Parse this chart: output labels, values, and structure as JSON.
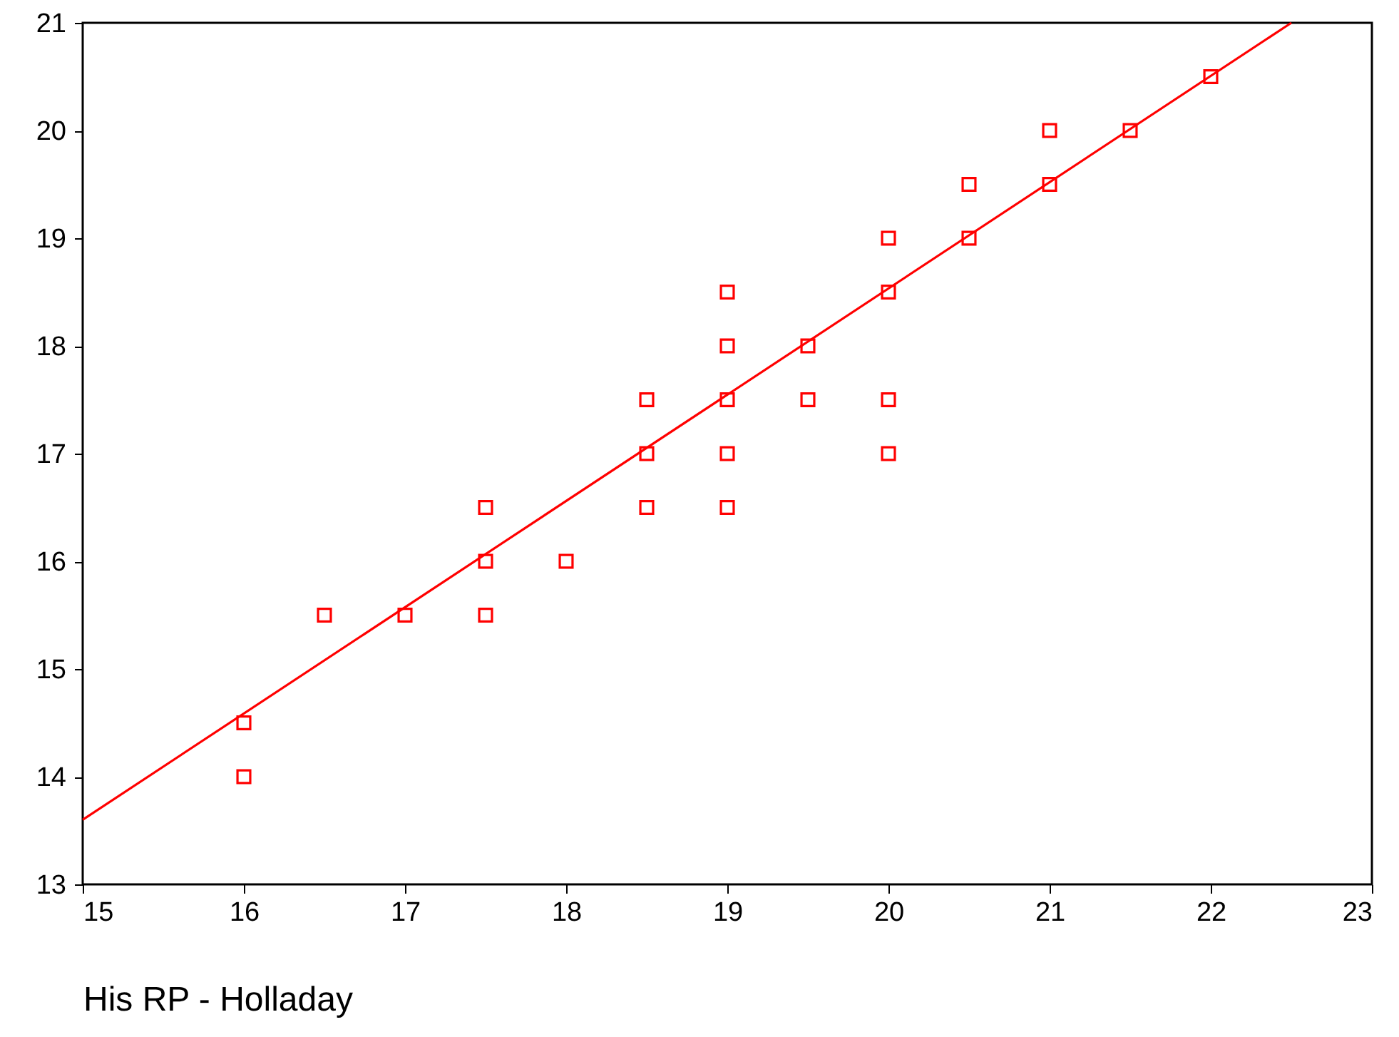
{
  "chart_data": {
    "type": "scatter",
    "xlabel": "His RP - Holladay",
    "grid": false,
    "xlim": [
      15,
      23
    ],
    "xticks": [
      15,
      16,
      17,
      18,
      19,
      20,
      21,
      22,
      23
    ],
    "ylim": [
      13,
      21
    ],
    "yticks": [
      13,
      14,
      15,
      16,
      17,
      18,
      19,
      20,
      21
    ],
    "series": [
      {
        "marker": "square",
        "color": "#ff0000",
        "x": [
          16,
          16,
          16.5,
          17,
          17.5,
          17.5,
          17.5,
          18,
          18.5,
          18.5,
          18.5,
          19,
          19,
          19,
          19,
          19,
          19.5,
          19.5,
          20,
          20,
          20,
          20,
          20.5,
          20.5,
          21,
          21,
          21.5,
          22
        ],
        "values": [
          14.5,
          14,
          15.5,
          15.5,
          16.5,
          16,
          15.5,
          16,
          17.5,
          17,
          16.5,
          18.5,
          18,
          17.5,
          17,
          16.5,
          18,
          17.5,
          19,
          18.5,
          17.5,
          17,
          19.5,
          19,
          20,
          19.5,
          20,
          20.5
        ]
      },
      {
        "type": "line",
        "color": "#ff0000",
        "x": [
          15,
          22.5
        ],
        "values": [
          13.6,
          21
        ]
      }
    ]
  }
}
